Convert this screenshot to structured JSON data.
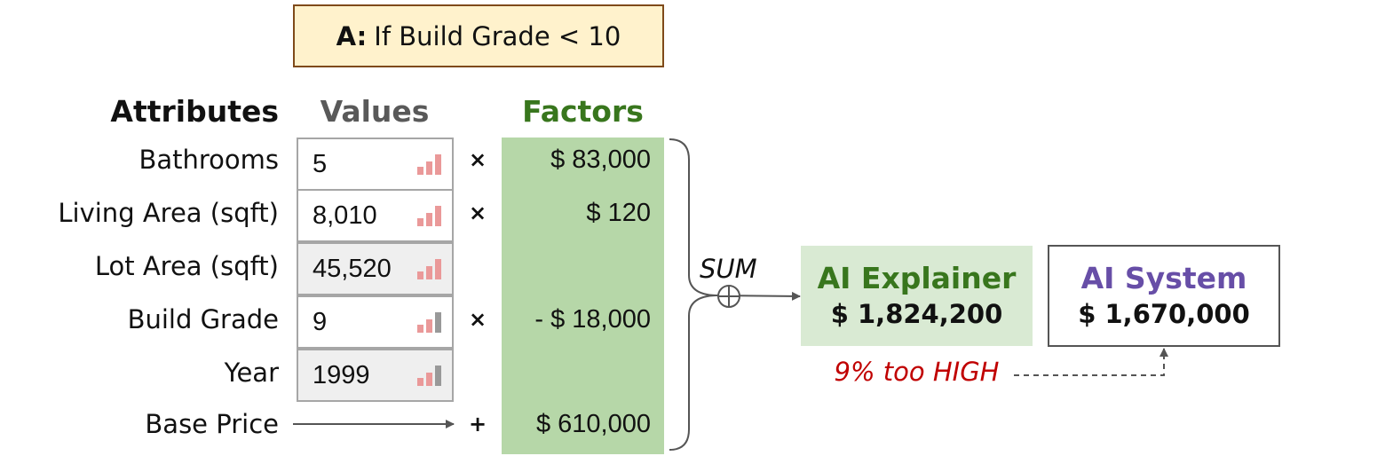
{
  "condition": {
    "prefix": "A:",
    "text": "If Build Grade < 10"
  },
  "headers": {
    "attributes": "Attributes",
    "values": "Values",
    "factors": "Factors"
  },
  "rows": [
    {
      "attribute": "Bathrooms",
      "value": "5",
      "operator": "×",
      "factor": "$ 83,000",
      "highlight": false,
      "level": 3
    },
    {
      "attribute": "Living Area (sqft)",
      "value": "8,010",
      "operator": "×",
      "factor": "$ 120",
      "highlight": false,
      "level": 3
    },
    {
      "attribute": "Lot Area (sqft)",
      "value": "45,520",
      "operator": "",
      "factor": "",
      "highlight": true,
      "level": 3
    },
    {
      "attribute": "Build Grade",
      "value": "9",
      "operator": "×",
      "factor": "- $ 18,000",
      "highlight": false,
      "level": 2
    },
    {
      "attribute": "Year",
      "value": "1999",
      "operator": "",
      "factor": "",
      "highlight": true,
      "level": 2
    }
  ],
  "base": {
    "label": "Base Price",
    "operator": "+",
    "factor": "$ 610,000"
  },
  "sum_label": "SUM",
  "explainer": {
    "title": "AI Explainer",
    "value": "$ 1,824,200"
  },
  "system": {
    "title": "AI System",
    "value": "$ 1,670,000"
  },
  "error_note": "9% too HIGH",
  "colors": {
    "bar_active": "#ea9999",
    "bar_inactive": "#999999",
    "factors_bg": "#b6d7a8",
    "explainer_title": "#38761d",
    "system_title": "#674ea7",
    "error_text": "#c00000"
  }
}
